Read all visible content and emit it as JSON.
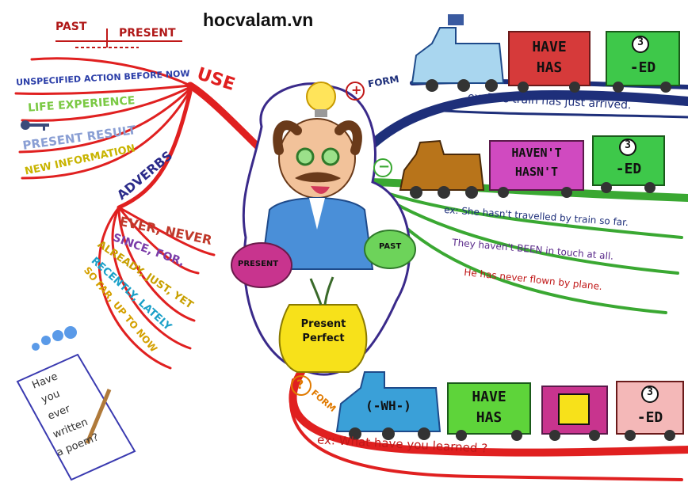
{
  "site": "hocvalam.vn",
  "timeline": {
    "past": "PAST",
    "present": "PRESENT"
  },
  "use": {
    "title": "USE",
    "items": [
      {
        "text": "UNSPECIFIED ACTION BEFORE NOW",
        "color": "#2b3ea8"
      },
      {
        "text": "LIFE EXPERIENCE",
        "color": "#7ac943"
      },
      {
        "text": "PRESENT RESULT",
        "color": "#8a9fd4"
      },
      {
        "text": "NEW INFORMATION",
        "color": "#c8b400"
      }
    ]
  },
  "adverbs": {
    "title": "ADVERBS",
    "items": [
      {
        "text": "EVER, NEVER",
        "color": "#c0392b"
      },
      {
        "text": "SINCE, FOR,",
        "color": "#7a3ca8"
      },
      {
        "text": "ALREADY, JUST, YET",
        "color": "#c8a000"
      },
      {
        "text": "RECENTLY, LATELY",
        "color": "#1aa0c8"
      },
      {
        "text": "SO FAR, UP TO NOW",
        "color": "#d4a000"
      }
    ]
  },
  "note": {
    "lines": [
      "Have",
      "you",
      "ever",
      "written",
      "a poem?"
    ]
  },
  "center": {
    "present": "PRESENT",
    "past": "PAST",
    "pot_line1": "Present",
    "pot_line2": "Perfect"
  },
  "positive": {
    "symbol": "+",
    "label": "FORM",
    "car1": [
      "HAVE",
      "HAS"
    ],
    "car2_num": "3",
    "car2_text": "-ED",
    "example": "ex: The train has just arrived."
  },
  "negative": {
    "symbol": "−",
    "car1": [
      "HAVEN'T",
      "HASN'T"
    ],
    "car2_num": "3",
    "car2_text": "-ED",
    "examples": [
      "ex: She hasn't travelled by train so far.",
      "They haven't BEEN in touch at all.",
      "He has never flown by plane."
    ]
  },
  "question": {
    "symbol": "?",
    "label": "FORM",
    "engine": "(-WH-)",
    "car1": [
      "HAVE",
      "HAS"
    ],
    "car3_num": "3",
    "car3_text": "-ED",
    "example": "ex: What have you learned ?"
  }
}
